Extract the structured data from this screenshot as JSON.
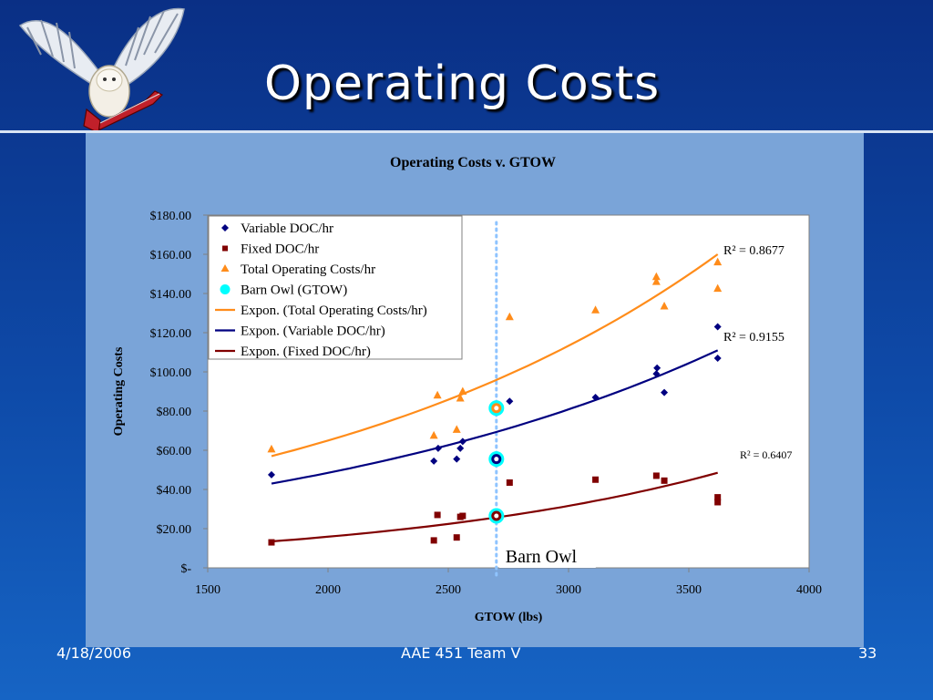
{
  "slide": {
    "title": "Operating Costs",
    "footer_date": "4/18/2006",
    "footer_center": "AAE 451 Team V",
    "footer_page": "33",
    "logo": "barn-owl-guitar-logo"
  },
  "colors": {
    "background": "#0e4aa8",
    "panel": "#7aa4d8",
    "variable": "#000080",
    "fixed": "#800000",
    "total": "#ff8c1a",
    "barn_owl": "#00ffff",
    "barn_owl_line": "#8fc4ff"
  },
  "chart_data": {
    "type": "scatter",
    "title": "Operating Costs v. GTOW",
    "xlabel": "GTOW (lbs)",
    "ylabel": "Operating Costs",
    "xlim": [
      1500,
      4000
    ],
    "ylim": [
      0,
      180
    ],
    "x_ticks": [
      "1500",
      "2000",
      "2500",
      "3000",
      "3500",
      "4000"
    ],
    "y_ticks": [
      "$-",
      "$20.00",
      "$40.00",
      "$60.00",
      "$80.00",
      "$100.00",
      "$120.00",
      "$140.00",
      "$160.00",
      "$180.00"
    ],
    "grid": false,
    "legend_position": "top-left",
    "legend": [
      "Variable DOC/hr",
      "Fixed DOC/hr",
      "Total Operating Costs/hr",
      "Barn Owl (GTOW)",
      "Expon. (Total Operating Costs/hr)",
      "Expon. (Variable DOC/hr)",
      "Expon. (Fixed DOC/hr)"
    ],
    "series": [
      {
        "name": "Variable DOC/hr",
        "marker": "diamond",
        "points": [
          [
            1765,
            47.5
          ],
          [
            2440,
            54.5
          ],
          [
            2458,
            61
          ],
          [
            2535,
            55.5
          ],
          [
            2550,
            61
          ],
          [
            2560,
            64.5
          ],
          [
            2755,
            85
          ],
          [
            3112,
            87
          ],
          [
            3365,
            99
          ],
          [
            3368,
            102
          ],
          [
            3398,
            89.5
          ],
          [
            3620,
            123
          ],
          [
            3620,
            107
          ]
        ]
      },
      {
        "name": "Fixed DOC/hr",
        "marker": "square",
        "points": [
          [
            1765,
            13
          ],
          [
            2440,
            14
          ],
          [
            2455,
            27
          ],
          [
            2535,
            15.5
          ],
          [
            2550,
            26
          ],
          [
            2560,
            26.5
          ],
          [
            2755,
            43.5
          ],
          [
            3112,
            45
          ],
          [
            3365,
            47
          ],
          [
            3398,
            44.5
          ],
          [
            3620,
            36
          ],
          [
            3620,
            33.5
          ]
        ]
      },
      {
        "name": "Total Operating Costs/hr",
        "marker": "triangle",
        "points": [
          [
            1765,
            60.5
          ],
          [
            2440,
            67.5
          ],
          [
            2455,
            88
          ],
          [
            2535,
            70.5
          ],
          [
            2550,
            86.5
          ],
          [
            2560,
            90
          ],
          [
            2755,
            128
          ],
          [
            3112,
            131.5
          ],
          [
            3365,
            148.5
          ],
          [
            3365,
            146
          ],
          [
            3398,
            133.5
          ],
          [
            3620,
            156
          ],
          [
            3620,
            142.5
          ]
        ]
      },
      {
        "name": "Barn Owl (GTOW)",
        "marker": "circle",
        "points": [
          [
            2700,
            81.5
          ],
          [
            2700,
            55.5
          ],
          [
            2700,
            26.5
          ]
        ]
      }
    ],
    "trendlines": [
      {
        "name": "Expon. (Total Operating Costs/hr)",
        "x_range": [
          1765,
          3620
        ],
        "y_start": 57,
        "y_end": 160,
        "r2": "R² = 0.8677"
      },
      {
        "name": "Expon. (Variable DOC/hr)",
        "x_range": [
          1765,
          3620
        ],
        "y_start": 43,
        "y_end": 111,
        "r2": "R² = 0.9155"
      },
      {
        "name": "Expon. (Fixed DOC/hr)",
        "x_range": [
          1765,
          3620
        ],
        "y_start": 13.5,
        "y_end": 48.5,
        "r2": "R² = 0.6407"
      }
    ],
    "barn_owl_gtow": 2700,
    "annotation": "Barn Owl"
  }
}
